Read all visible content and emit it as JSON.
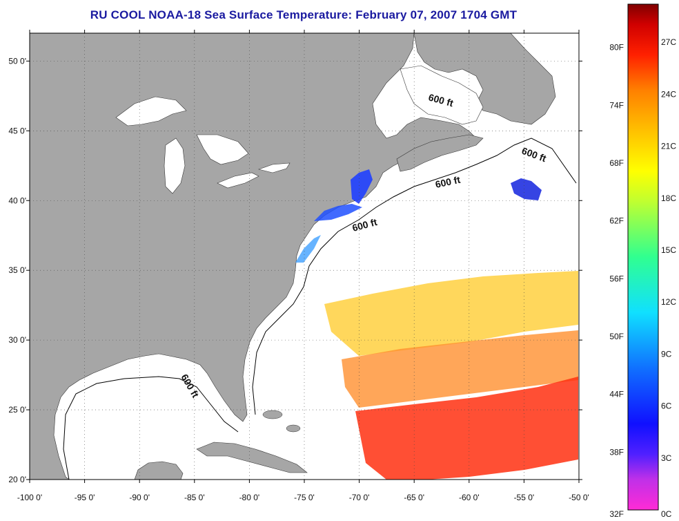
{
  "title": "RU COOL  NOAA-18  Sea Surface Temperature:  February 07, 2007 1704 GMT",
  "map": {
    "lon_range": [
      -100,
      -50
    ],
    "lat_range": [
      20,
      52
    ],
    "lon_ticks": [
      "-100 0'",
      "-95 0'",
      "-90 0'",
      "-85 0'",
      "-80 0'",
      "-75 0'",
      "-70 0'",
      "-65 0'",
      "-60 0'",
      "-55 0'",
      "-50 0'"
    ],
    "lat_ticks": [
      "20 0'",
      "25 0'",
      "30 0'",
      "35 0'",
      "40 0'",
      "45 0'",
      "50 0'"
    ],
    "grid": "dotted",
    "land_color": "#a6a6a6",
    "water_color": "#ffffff",
    "contour_labels": [
      "600 ft",
      "600 ft",
      "600 ft",
      "600 ft"
    ]
  },
  "colorbar": {
    "fahrenheit_labels": [
      "80F",
      "74F",
      "68F",
      "62F",
      "56F",
      "50F",
      "44F",
      "38F",
      "32F"
    ],
    "celsius_labels": [
      "27C",
      "24C",
      "21C",
      "18C",
      "15C",
      "12C",
      "9C",
      "6C",
      "3C",
      "0C"
    ],
    "colors": [
      "#ff2bd6",
      "#8a2be2",
      "#1010ff",
      "#1060ff",
      "#10d0ff",
      "#10ffd0",
      "#60ff60",
      "#d0ff20",
      "#ffff00",
      "#ffc000",
      "#ff8000",
      "#ff3000",
      "#e00000",
      "#800000"
    ]
  }
}
